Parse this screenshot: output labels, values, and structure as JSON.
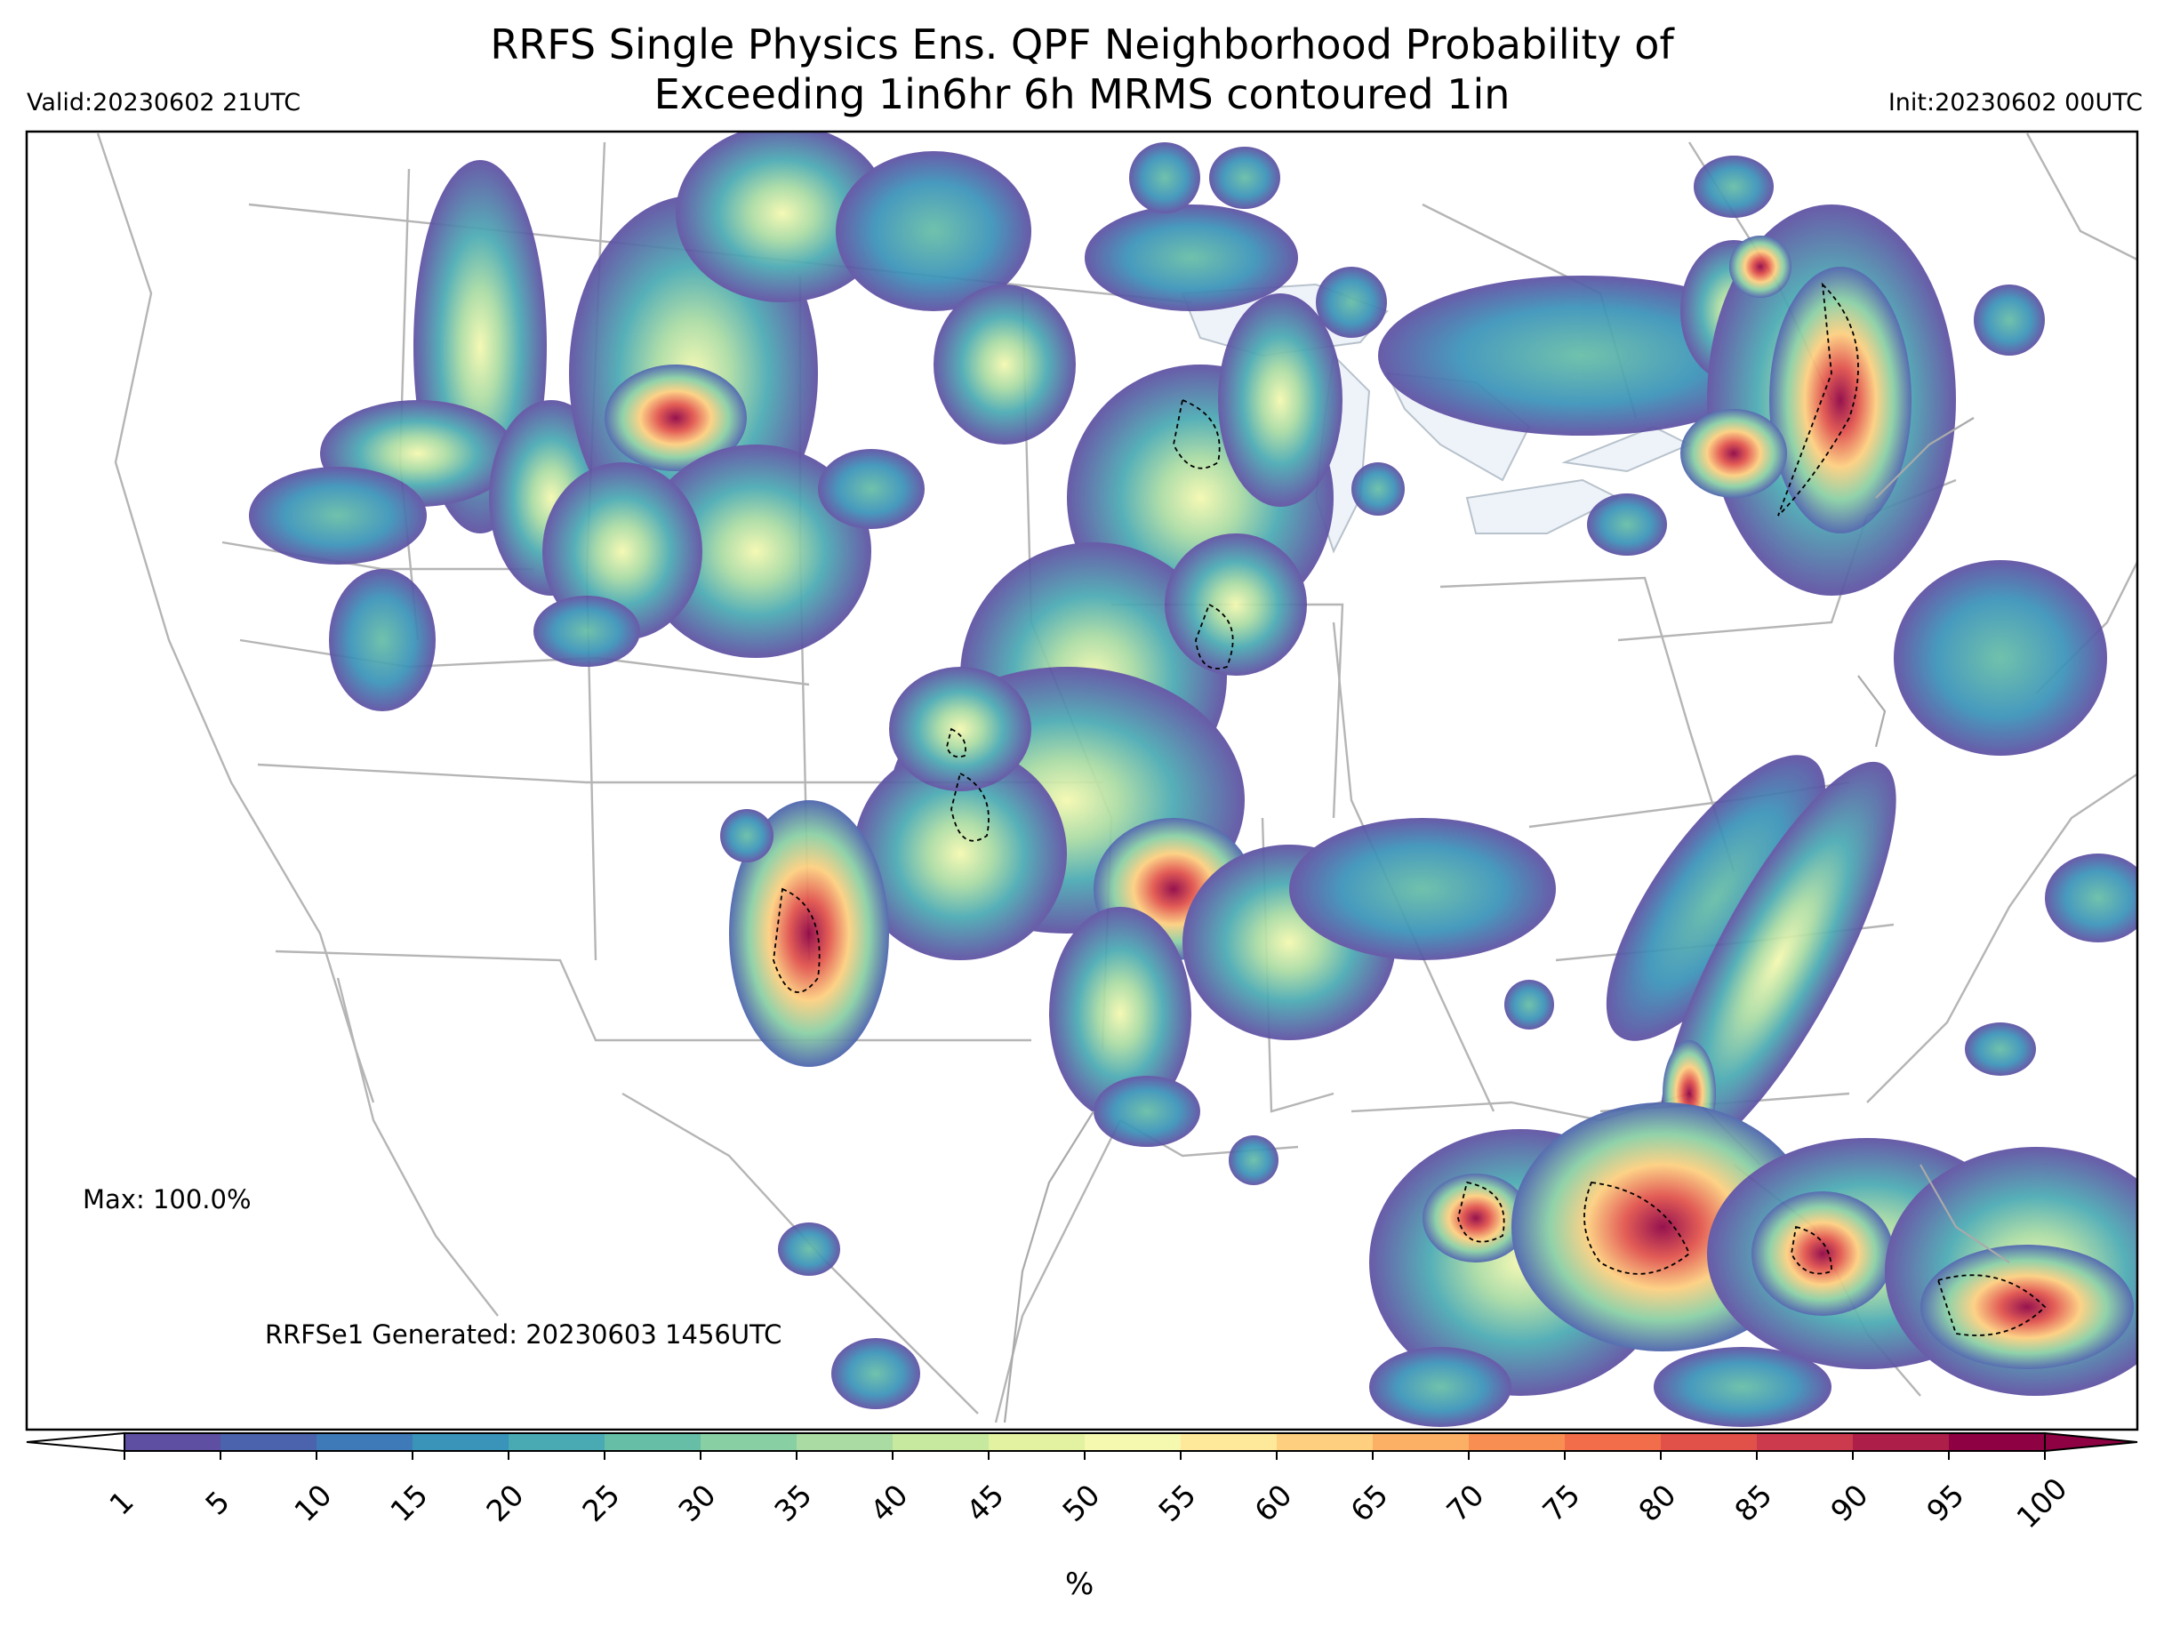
{
  "title_line1": "RRFS Single Physics Ens. QPF Neighborhood Probability of",
  "title_line2": "Exceeding 1in6hr 6h MRMS contoured 1in",
  "valid_label": "Valid:20230602 21UTC",
  "init_label": "Init:20230602 00UTC",
  "max_label": "Max: 100.0%",
  "generated_label": "RRFSe1 Generated: 20230603 1456UTC",
  "colorbar": {
    "units": "%",
    "ticks": [
      "1",
      "5",
      "10",
      "15",
      "20",
      "25",
      "30",
      "35",
      "40",
      "45",
      "50",
      "55",
      "60",
      "65",
      "70",
      "75",
      "80",
      "85",
      "90",
      "95",
      "100"
    ],
    "colors": [
      "#5e4fa2",
      "#4b62ac",
      "#3d7ab7",
      "#3a93b9",
      "#4aaab3",
      "#66bea6",
      "#88cfa4",
      "#a9dba3",
      "#c7e89f",
      "#e2f2a0",
      "#f5f9b0",
      "#fee89a",
      "#fdcf7e",
      "#fcb066",
      "#f98e52",
      "#f26d4a",
      "#e1514a",
      "#cc3a4e",
      "#ad1f48",
      "#8e0142"
    ]
  },
  "map": {
    "region": "CONUS",
    "contour_overlay": "MRMS 1in (dashed black)"
  }
}
